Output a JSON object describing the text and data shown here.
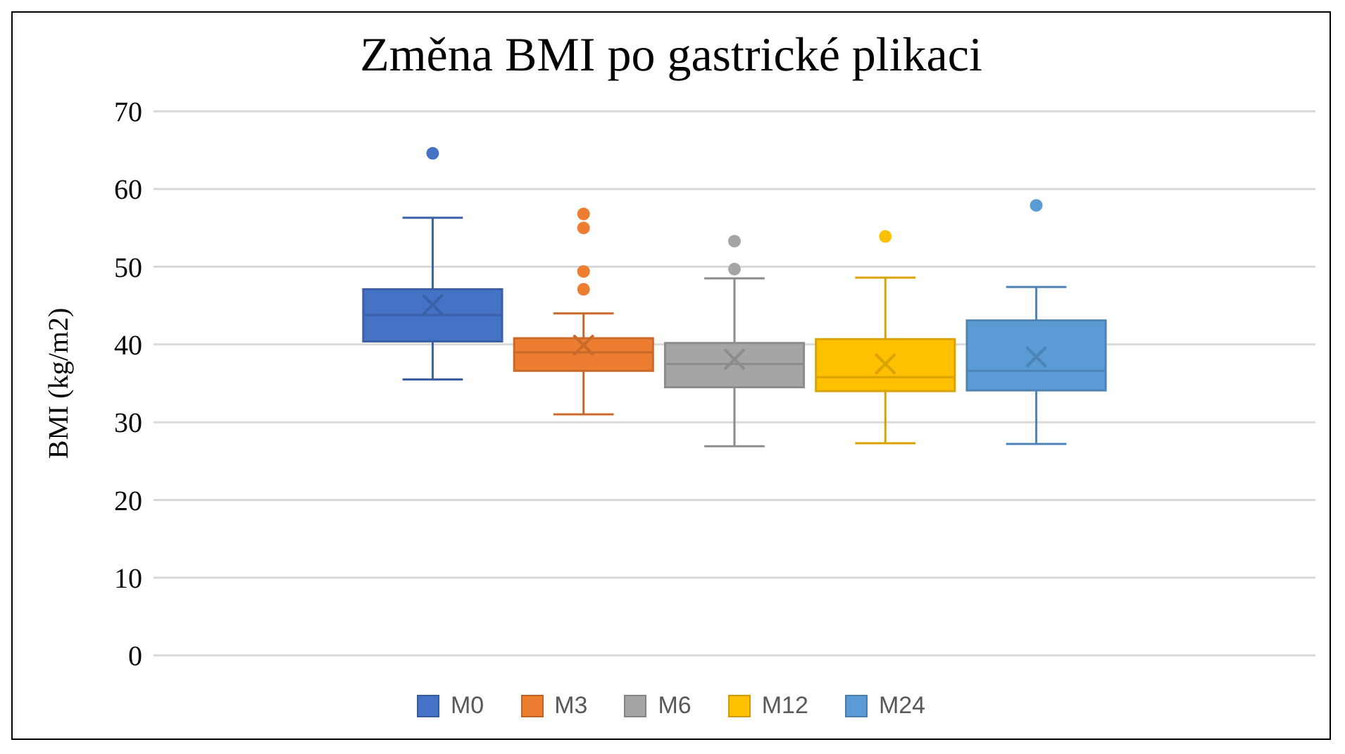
{
  "chart_data": {
    "type": "box",
    "title": "Změna BMI po gastrické plikaci",
    "ylabel": "BMI (kg/m2)",
    "categories": [
      null
    ],
    "ylim": [
      0,
      70
    ],
    "yticks": [
      0,
      10,
      20,
      30,
      40,
      50,
      60,
      70
    ],
    "grid": "y",
    "legend": "bottom",
    "tick_labels": "y",
    "series": [
      {
        "name": "M0",
        "color": "#4472c4",
        "boxes": [
          {
            "low": 35.5,
            "q1": 40.4,
            "median": 43.8,
            "q3": 47.1,
            "high": 56.3,
            "mean": 45.1,
            "outliers": [
              64.6
            ]
          }
        ]
      },
      {
        "name": "M3",
        "color": "#ed7d31",
        "boxes": [
          {
            "low": 31.0,
            "q1": 36.6,
            "median": 39.0,
            "q3": 40.8,
            "high": 44.0,
            "mean": 39.9,
            "outliers": [
              56.8,
              55.0,
              49.4,
              47.1
            ]
          }
        ]
      },
      {
        "name": "M6",
        "color": "#a5a5a5",
        "boxes": [
          {
            "low": 26.9,
            "q1": 34.5,
            "median": 37.5,
            "q3": 40.2,
            "high": 48.5,
            "mean": 38.1,
            "outliers": [
              53.3,
              49.7
            ]
          }
        ]
      },
      {
        "name": "M12",
        "color": "#ffc000",
        "boxes": [
          {
            "low": 27.3,
            "q1": 34.0,
            "median": 35.8,
            "q3": 40.7,
            "high": 48.6,
            "mean": 37.5,
            "outliers": [
              53.9
            ]
          }
        ]
      },
      {
        "name": "M24",
        "color": "#5b9bd5",
        "boxes": [
          {
            "low": 27.2,
            "q1": 34.1,
            "median": 36.6,
            "q3": 43.1,
            "high": 47.4,
            "mean": 38.4,
            "outliers": [
              57.9
            ]
          }
        ]
      }
    ]
  }
}
